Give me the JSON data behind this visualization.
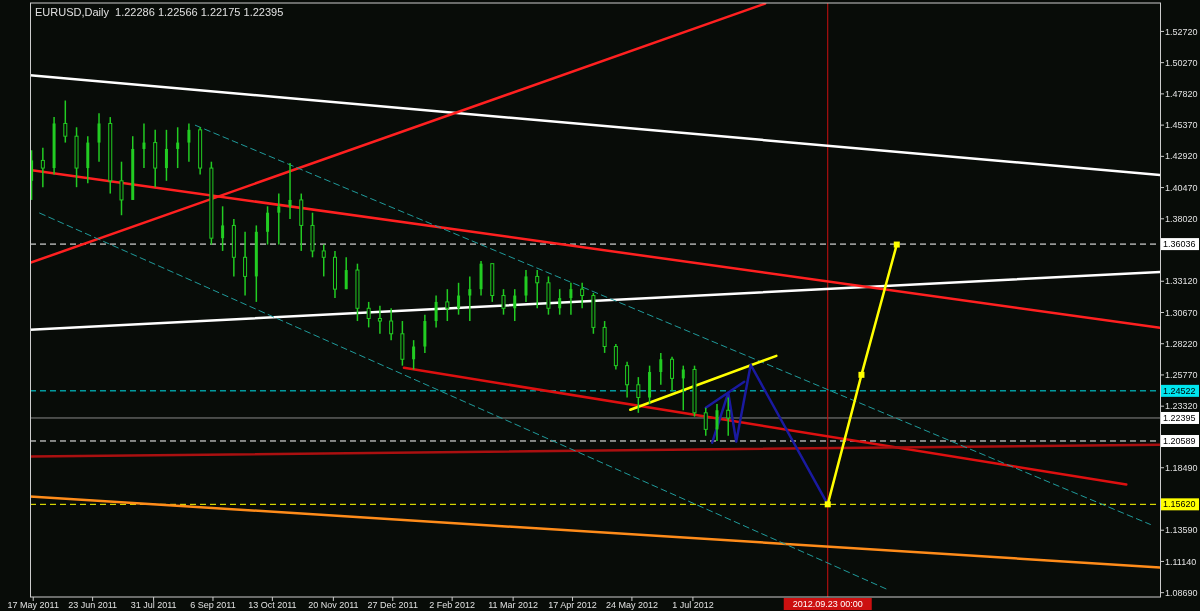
{
  "chart_data": {
    "type": "candlestick",
    "title": "EURUSD,Daily  1.22286 1.22566 1.22175 1.22395",
    "color": "#22cc22",
    "grid": false,
    "marker": "none",
    "x": [
      "2011-05-16",
      "2011-05-23",
      "2011-05-30",
      "2011-06-06",
      "2011-06-13",
      "2011-06-20",
      "2011-06-27",
      "2011-07-04",
      "2011-07-11",
      "2011-07-18",
      "2011-07-25",
      "2011-08-01",
      "2011-08-08",
      "2011-08-15",
      "2011-08-22",
      "2011-08-29",
      "2011-09-05",
      "2011-09-12",
      "2011-09-19",
      "2011-09-26",
      "2011-10-03",
      "2011-10-10",
      "2011-10-17",
      "2011-10-24",
      "2011-10-31",
      "2011-11-07",
      "2011-11-14",
      "2011-11-21",
      "2011-11-28",
      "2011-12-05",
      "2011-12-12",
      "2011-12-19",
      "2011-12-26",
      "2012-01-02",
      "2012-01-09",
      "2012-01-16",
      "2012-01-23",
      "2012-01-30",
      "2012-02-06",
      "2012-02-13",
      "2012-02-20",
      "2012-02-27",
      "2012-03-05",
      "2012-03-12",
      "2012-03-19",
      "2012-03-26",
      "2012-04-02",
      "2012-04-09",
      "2012-04-16",
      "2012-04-23",
      "2012-04-30",
      "2012-05-07",
      "2012-05-14",
      "2012-05-21",
      "2012-05-28",
      "2012-06-04",
      "2012-06-11",
      "2012-06-18",
      "2012-06-25",
      "2012-07-02",
      "2012-07-09",
      "2012-07-16",
      "2012-07-23"
    ],
    "ohlc": [
      [
        1.41,
        1.434,
        1.395,
        1.426
      ],
      [
        1.426,
        1.436,
        1.405,
        1.42
      ],
      [
        1.42,
        1.46,
        1.415,
        1.455
      ],
      [
        1.455,
        1.473,
        1.44,
        1.445
      ],
      [
        1.445,
        1.452,
        1.405,
        1.42
      ],
      [
        1.42,
        1.445,
        1.408,
        1.44
      ],
      [
        1.44,
        1.463,
        1.425,
        1.455
      ],
      [
        1.455,
        1.46,
        1.4,
        1.41
      ],
      [
        1.41,
        1.425,
        1.383,
        1.395
      ],
      [
        1.395,
        1.445,
        1.395,
        1.435
      ],
      [
        1.435,
        1.455,
        1.42,
        1.44
      ],
      [
        1.44,
        1.45,
        1.405,
        1.42
      ],
      [
        1.42,
        1.45,
        1.41,
        1.435
      ],
      [
        1.435,
        1.452,
        1.42,
        1.44
      ],
      [
        1.44,
        1.455,
        1.425,
        1.45
      ],
      [
        1.45,
        1.452,
        1.415,
        1.42
      ],
      [
        1.42,
        1.425,
        1.36,
        1.365
      ],
      [
        1.365,
        1.39,
        1.355,
        1.375
      ],
      [
        1.375,
        1.38,
        1.335,
        1.35
      ],
      [
        1.35,
        1.37,
        1.32,
        1.335
      ],
      [
        1.335,
        1.375,
        1.315,
        1.37
      ],
      [
        1.37,
        1.39,
        1.36,
        1.385
      ],
      [
        1.385,
        1.4,
        1.36,
        1.39
      ],
      [
        1.39,
        1.424,
        1.38,
        1.395
      ],
      [
        1.395,
        1.4,
        1.355,
        1.375
      ],
      [
        1.375,
        1.385,
        1.35,
        1.355
      ],
      [
        1.355,
        1.36,
        1.335,
        1.35
      ],
      [
        1.35,
        1.355,
        1.318,
        1.325
      ],
      [
        1.325,
        1.35,
        1.325,
        1.34
      ],
      [
        1.34,
        1.345,
        1.3,
        1.31
      ],
      [
        1.31,
        1.315,
        1.295,
        1.302
      ],
      [
        1.302,
        1.312,
        1.29,
        1.3
      ],
      [
        1.3,
        1.31,
        1.285,
        1.29
      ],
      [
        1.29,
        1.3,
        1.265,
        1.27
      ],
      [
        1.27,
        1.285,
        1.262,
        1.28
      ],
      [
        1.28,
        1.305,
        1.275,
        1.3
      ],
      [
        1.3,
        1.32,
        1.295,
        1.315
      ],
      [
        1.315,
        1.325,
        1.3,
        1.31
      ],
      [
        1.31,
        1.33,
        1.305,
        1.32
      ],
      [
        1.32,
        1.335,
        1.3,
        1.325
      ],
      [
        1.325,
        1.347,
        1.32,
        1.345
      ],
      [
        1.345,
        1.345,
        1.315,
        1.32
      ],
      [
        1.32,
        1.325,
        1.305,
        1.31
      ],
      [
        1.31,
        1.325,
        1.3,
        1.32
      ],
      [
        1.32,
        1.34,
        1.315,
        1.335
      ],
      [
        1.335,
        1.34,
        1.31,
        1.33
      ],
      [
        1.33,
        1.335,
        1.305,
        1.31
      ],
      [
        1.31,
        1.325,
        1.305,
        1.318
      ],
      [
        1.318,
        1.33,
        1.305,
        1.325
      ],
      [
        1.325,
        1.33,
        1.31,
        1.32
      ],
      [
        1.32,
        1.322,
        1.29,
        1.295
      ],
      [
        1.295,
        1.3,
        1.275,
        1.28
      ],
      [
        1.28,
        1.282,
        1.262,
        1.265
      ],
      [
        1.265,
        1.268,
        1.24,
        1.25
      ],
      [
        1.25,
        1.256,
        1.228,
        1.24
      ],
      [
        1.24,
        1.265,
        1.235,
        1.26
      ],
      [
        1.26,
        1.275,
        1.25,
        1.27
      ],
      [
        1.27,
        1.272,
        1.245,
        1.255
      ],
      [
        1.255,
        1.265,
        1.23,
        1.262
      ],
      [
        1.262,
        1.265,
        1.225,
        1.228
      ],
      [
        1.228,
        1.232,
        1.21,
        1.215
      ],
      [
        1.215,
        1.235,
        1.2059,
        1.23
      ],
      [
        1.23,
        1.24,
        1.21,
        1.22395
      ]
    ],
    "series": [
      {
        "type": "line",
        "color": "#ffffff",
        "x": [
          "2011-05-15",
          "2013-04-18"
        ],
        "values": [
          1.4928,
          1.4145
        ]
      },
      {
        "type": "line",
        "color": "#ffffff",
        "x": [
          "2011-05-15",
          "2013-04-18"
        ],
        "values": [
          1.2931,
          1.3385
        ]
      },
      {
        "type": "line",
        "color": "#ff2020",
        "x": [
          "2011-05-15",
          "2012-08-15"
        ],
        "values": [
          1.3456,
          1.549
        ]
      },
      {
        "type": "line",
        "color": "#ff2020",
        "x": [
          "2011-05-15",
          "2013-04-18"
        ],
        "values": [
          1.4184,
          1.2947
        ]
      },
      {
        "type": "line",
        "color": "#dd1010",
        "x": [
          "2012-01-03",
          "2013-03-28"
        ],
        "values": [
          1.2633,
          1.1717
        ]
      },
      {
        "type": "line",
        "color": "#aa1010",
        "x": [
          "2011-05-15",
          "2013-04-18"
        ],
        "values": [
          1.1937,
          1.203
        ]
      },
      {
        "type": "line",
        "color": "#ff8c1a",
        "x": [
          "2011-05-15",
          "2013-04-18"
        ],
        "values": [
          1.1623,
          1.1067
        ]
      },
      {
        "type": "line",
        "color": "#1f9a9a",
        "line_style": "dashed",
        "x": [
          "2011-08-26",
          "2013-04-12"
        ],
        "values": [
          1.4536,
          1.1404
        ]
      },
      {
        "type": "line",
        "color": "#1f9a9a",
        "line_style": "dashed",
        "x": [
          "2011-05-21",
          "2012-10-30"
        ],
        "values": [
          1.3847,
          1.0895
        ]
      },
      {
        "type": "line",
        "color": "#ffff00",
        "x": [
          "2012-05-23",
          "2012-08-22"
        ],
        "values": [
          1.2304,
          1.2727
        ]
      },
      {
        "type": "line",
        "color": "#1a1aa0",
        "x": [
          "2012-07-13",
          "2012-07-23",
          "2012-07-28",
          "2012-08-06",
          "2012-09-23"
        ],
        "values": [
          1.2046,
          1.2437,
          1.2054,
          1.2657,
          1.1562
        ]
      },
      {
        "type": "line",
        "color": "#1a1aa0",
        "x": [
          "2012-07-09",
          "2012-08-02"
        ],
        "values": [
          1.232,
          1.2523
        ]
      },
      {
        "type": "line",
        "color": "#ffff00",
        "marker": "square",
        "x": [
          "2012-09-23",
          "2012-10-14",
          "2012-11-05"
        ],
        "values": [
          1.1562,
          1.2578,
          1.36
        ]
      }
    ],
    "ref_lines": [
      {
        "axis": "y",
        "value": 1.36036,
        "label": "1.36036",
        "color": "#ffffff",
        "line_style": "dashed"
      },
      {
        "axis": "y",
        "value": 1.24522,
        "label": "1.24522",
        "color": "#00e5ee",
        "line_style": "dashed"
      },
      {
        "axis": "y",
        "value": 1.22395,
        "label": "1.22395",
        "color": "#888888",
        "line_style": "solid"
      },
      {
        "axis": "y",
        "value": 1.20589,
        "label": "1.20589",
        "color": "#ffffff",
        "line_style": "dashed"
      },
      {
        "axis": "y",
        "value": 1.1562,
        "label": "1.15620",
        "color": "#ffff00",
        "line_style": "dashed"
      },
      {
        "axis": "x",
        "value": "2012-09-23",
        "label": "2012.09.23 00:00",
        "color": "#cc1010",
        "line_style": "solid"
      }
    ],
    "xlim": [
      "2011-05-15",
      "2013-04-18"
    ],
    "xticks": [
      {
        "value": "2011-05-17",
        "label": "17 May 2011"
      },
      {
        "value": "2011-06-23",
        "label": "23 Jun 2011"
      },
      {
        "value": "2011-07-31",
        "label": "31 Jul 2011"
      },
      {
        "value": "2011-09-06",
        "label": "6 Sep 2011"
      },
      {
        "value": "2011-10-13",
        "label": "13 Oct 2011"
      },
      {
        "value": "2011-11-20",
        "label": "20 Nov 2011"
      },
      {
        "value": "2011-12-27",
        "label": "27 Dec 2011"
      },
      {
        "value": "2012-02-02",
        "label": "2 Feb 2012"
      },
      {
        "value": "2012-03-11",
        "label": "11 Mar 2012"
      },
      {
        "value": "2012-04-17",
        "label": "17 Apr 2012"
      },
      {
        "value": "2012-05-24",
        "label": "24 May 2012"
      },
      {
        "value": "2012-07-01",
        "label": "1 Jul 2012"
      }
    ],
    "ylim": [
      1.0835,
      1.5495
    ],
    "yticks": [
      {
        "value": 1.5272,
        "label": "1.52720"
      },
      {
        "value": 1.5027,
        "label": "1.50270"
      },
      {
        "value": 1.4782,
        "label": "1.47820"
      },
      {
        "value": 1.4537,
        "label": "1.45370"
      },
      {
        "value": 1.4292,
        "label": "1.42920"
      },
      {
        "value": 1.4047,
        "label": "1.40470"
      },
      {
        "value": 1.3802,
        "label": "1.38020"
      },
      {
        "value": 1.3312,
        "label": "1.33120"
      },
      {
        "value": 1.3067,
        "label": "1.30670"
      },
      {
        "value": 1.2822,
        "label": "1.28220"
      },
      {
        "value": 1.2577,
        "label": "1.25770"
      },
      {
        "value": 1.2332,
        "label": "1.23320"
      },
      {
        "value": 1.1849,
        "label": "1.18490"
      },
      {
        "value": 1.1359,
        "label": "1.13590"
      },
      {
        "value": 1.1114,
        "label": "1.11140"
      },
      {
        "value": 1.0869,
        "label": "1.08690"
      }
    ]
  }
}
